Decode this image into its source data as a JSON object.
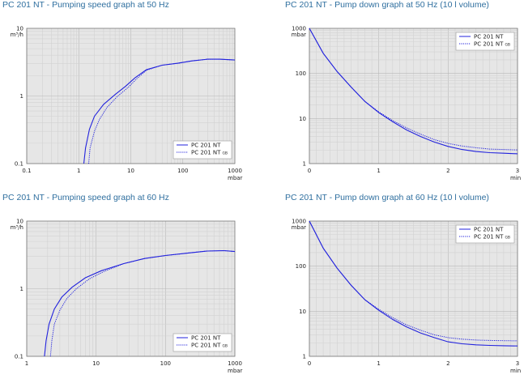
{
  "chart_data": [
    {
      "type": "line",
      "title": "PC 201 NT - Pumping speed graph at 50 Hz",
      "xunit": "mbar",
      "yunit": "m³/h",
      "xscale": "log",
      "yscale": "log",
      "xlim": [
        0.1,
        1000
      ],
      "ylim": [
        0.1,
        10
      ],
      "xticks": [
        "0.1",
        "1",
        "10",
        "100",
        "1000"
      ],
      "yticks": [
        "0.1",
        "1",
        "10"
      ],
      "grid": true,
      "legend_position": "bottom-right",
      "series": [
        {
          "name": "PC 201 NT",
          "style": "solid",
          "x": [
            1.25,
            1.35,
            1.6,
            2,
            3,
            5,
            8,
            12,
            20,
            40,
            80,
            150,
            300,
            500,
            1000
          ],
          "y": [
            0.1,
            0.17,
            0.32,
            0.5,
            0.75,
            1.05,
            1.4,
            1.85,
            2.45,
            2.85,
            3.05,
            3.3,
            3.5,
            3.5,
            3.4
          ]
        },
        {
          "name": "PC 201 NT",
          "suffix": "GB",
          "style": "dotted",
          "x": [
            1.55,
            1.65,
            2,
            2.5,
            3.5,
            5.5,
            9,
            13,
            20,
            40,
            80,
            150,
            300,
            500,
            1000
          ],
          "y": [
            0.1,
            0.17,
            0.3,
            0.45,
            0.68,
            0.98,
            1.35,
            1.8,
            2.4,
            2.85,
            3.05,
            3.3,
            3.5,
            3.5,
            3.4
          ]
        }
      ]
    },
    {
      "type": "line",
      "title": "PC 201 NT - Pump down graph at 50 Hz (10 l volume)",
      "xunit": "min",
      "yunit": "mbar",
      "yscale": "log",
      "xlim": [
        0,
        3
      ],
      "ylim": [
        1,
        1000
      ],
      "xticks": [
        "0",
        "1",
        "2",
        "3"
      ],
      "yticks": [
        "1",
        "10",
        "100",
        "1000"
      ],
      "grid": true,
      "legend_position": "top-right",
      "series": [
        {
          "name": "PC 201 NT",
          "style": "solid",
          "x": [
            0,
            0.2,
            0.4,
            0.6,
            0.8,
            1.0,
            1.2,
            1.4,
            1.6,
            1.8,
            2.0,
            2.2,
            2.4,
            2.6,
            2.8,
            3.0
          ],
          "y": [
            1000,
            280,
            110,
            50,
            24,
            13.5,
            8.5,
            5.6,
            4.0,
            3.0,
            2.4,
            2.05,
            1.85,
            1.75,
            1.7,
            1.65
          ]
        },
        {
          "name": "PC 201 NT",
          "suffix": "GB",
          "style": "dotted",
          "x": [
            0,
            0.2,
            0.4,
            0.6,
            0.8,
            1.0,
            1.2,
            1.4,
            1.6,
            1.8,
            2.0,
            2.2,
            2.4,
            2.6,
            2.8,
            3.0
          ],
          "y": [
            1000,
            280,
            110,
            50,
            24,
            14.0,
            9.0,
            6.2,
            4.5,
            3.4,
            2.8,
            2.45,
            2.25,
            2.1,
            2.05,
            2.0
          ]
        }
      ]
    },
    {
      "type": "line",
      "title": "PC 201 NT - Pumping speed graph at 60 Hz",
      "xunit": "mbar",
      "yunit": "m³/h",
      "xscale": "log",
      "yscale": "log",
      "xlim": [
        1,
        1000
      ],
      "ylim": [
        0.1,
        10
      ],
      "xticks": [
        "1",
        "10",
        "100",
        "1000"
      ],
      "yticks": [
        "0.1",
        "1",
        "10"
      ],
      "grid": true,
      "legend_position": "bottom-right",
      "series": [
        {
          "name": "PC 201 NT",
          "style": "solid",
          "x": [
            1.8,
            1.9,
            2.1,
            2.5,
            3.2,
            4.5,
            7,
            12,
            25,
            50,
            100,
            200,
            400,
            700,
            1000
          ],
          "y": [
            0.1,
            0.17,
            0.3,
            0.5,
            0.75,
            1.05,
            1.45,
            1.85,
            2.35,
            2.8,
            3.1,
            3.35,
            3.6,
            3.65,
            3.55
          ]
        },
        {
          "name": "PC 201 NT",
          "suffix": "GB",
          "style": "dotted",
          "x": [
            2.2,
            2.3,
            2.5,
            3.0,
            3.8,
            5.2,
            8,
            13,
            25,
            50,
            100,
            200,
            400,
            700,
            1000
          ],
          "y": [
            0.1,
            0.17,
            0.3,
            0.48,
            0.72,
            1.0,
            1.4,
            1.8,
            2.35,
            2.8,
            3.1,
            3.35,
            3.6,
            3.65,
            3.55
          ]
        }
      ]
    },
    {
      "type": "line",
      "title": "PC 201 NT - Pump down graph at 60 Hz (10 l volume)",
      "xunit": "min",
      "yunit": "mbar",
      "yscale": "log",
      "xlim": [
        0,
        3
      ],
      "ylim": [
        1,
        1000
      ],
      "xticks": [
        "0",
        "1",
        "2",
        "3"
      ],
      "yticks": [
        "1",
        "10",
        "100",
        "1000"
      ],
      "grid": true,
      "legend_position": "top-right",
      "series": [
        {
          "name": "PC 201 NT",
          "style": "solid",
          "x": [
            0,
            0.2,
            0.4,
            0.6,
            0.8,
            1.0,
            1.2,
            1.4,
            1.6,
            1.8,
            2.0,
            2.2,
            2.4,
            2.6,
            2.8,
            3.0
          ],
          "y": [
            1000,
            250,
            90,
            38,
            18,
            10.5,
            6.6,
            4.5,
            3.3,
            2.6,
            2.1,
            1.9,
            1.8,
            1.75,
            1.72,
            1.7
          ]
        },
        {
          "name": "PC 201 NT",
          "suffix": "GB",
          "style": "dotted",
          "x": [
            0,
            0.2,
            0.4,
            0.6,
            0.8,
            1.0,
            1.2,
            1.4,
            1.6,
            1.8,
            2.0,
            2.2,
            2.4,
            2.6,
            2.8,
            3.0
          ],
          "y": [
            1000,
            250,
            90,
            38,
            18,
            11.0,
            7.2,
            5.0,
            3.8,
            3.0,
            2.6,
            2.4,
            2.3,
            2.25,
            2.22,
            2.2
          ]
        }
      ]
    }
  ],
  "colors": {
    "line": "#2222dd",
    "plot_bg": "#e6e6e6",
    "grid_major": "#b8b8b8",
    "grid_minor": "#d2d2d2",
    "title": "#2f6f9f"
  }
}
